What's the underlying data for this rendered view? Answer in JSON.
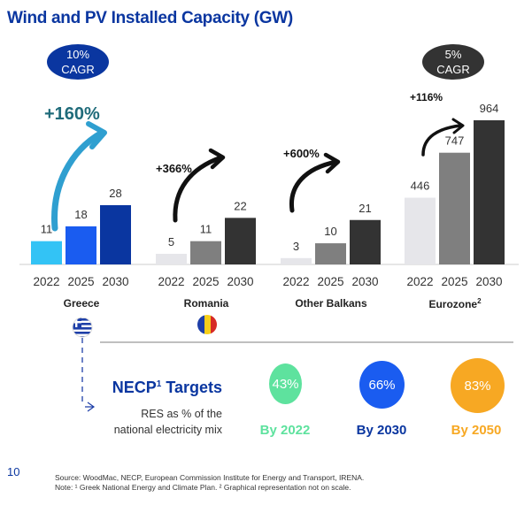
{
  "title": "Wind and PV Installed Capacity (GW)",
  "cagr_badges": [
    {
      "value": "10%",
      "label": "CAGR",
      "color": "#0a36a0"
    },
    {
      "value": "5%",
      "label": "CAGR",
      "color": "#333333"
    }
  ],
  "chart_data": {
    "type": "bar",
    "title": "Wind and PV Installed Capacity (GW)",
    "groups": [
      {
        "name": "Greece",
        "growth": "+160%",
        "categories": [
          "2022",
          "2025",
          "2030"
        ],
        "values": [
          11,
          18,
          28
        ],
        "colors": [
          "#33c3f5",
          "#1a5cf0",
          "#0a36a0"
        ]
      },
      {
        "name": "Romania",
        "growth": "+366%",
        "categories": [
          "2022",
          "2025",
          "2030"
        ],
        "values": [
          5,
          11,
          22
        ],
        "colors": [
          "#e6e6ea",
          "#7f7f7f",
          "#333333"
        ]
      },
      {
        "name": "Other Balkans",
        "growth": "+600%",
        "categories": [
          "2022",
          "2025",
          "2030"
        ],
        "values": [
          3,
          10,
          21
        ],
        "colors": [
          "#e6e6ea",
          "#7f7f7f",
          "#333333"
        ]
      },
      {
        "name": "Eurozone",
        "name_sup": "2",
        "growth": "+116%",
        "categories": [
          "2022",
          "2025",
          "2030"
        ],
        "values": [
          446,
          747,
          964
        ],
        "colors": [
          "#e6e6ea",
          "#7f7f7f",
          "#333333"
        ]
      }
    ],
    "grid": false
  },
  "necp": {
    "title": "NECP",
    "title_sup": "1",
    "title_rest": " Targets",
    "subtitle_line1": "RES as % of the",
    "subtitle_line2": "national electricity mix",
    "targets": [
      {
        "value": "43%",
        "label": "By 2022",
        "color": "#5ee29e"
      },
      {
        "value": "66%",
        "label": "By 2030",
        "color": "#1a5cf0",
        "label_color": "#0a36a0"
      },
      {
        "value": "83%",
        "label": "By 2050",
        "color": "#f7a823"
      }
    ]
  },
  "page_number": "10",
  "source": "Source: WoodMac, NECP, European Commission Institute for Energy and Transport, IRENA.",
  "note": "Note: ¹ Greek National Energy and Climate Plan. ² Graphical representation not on scale."
}
